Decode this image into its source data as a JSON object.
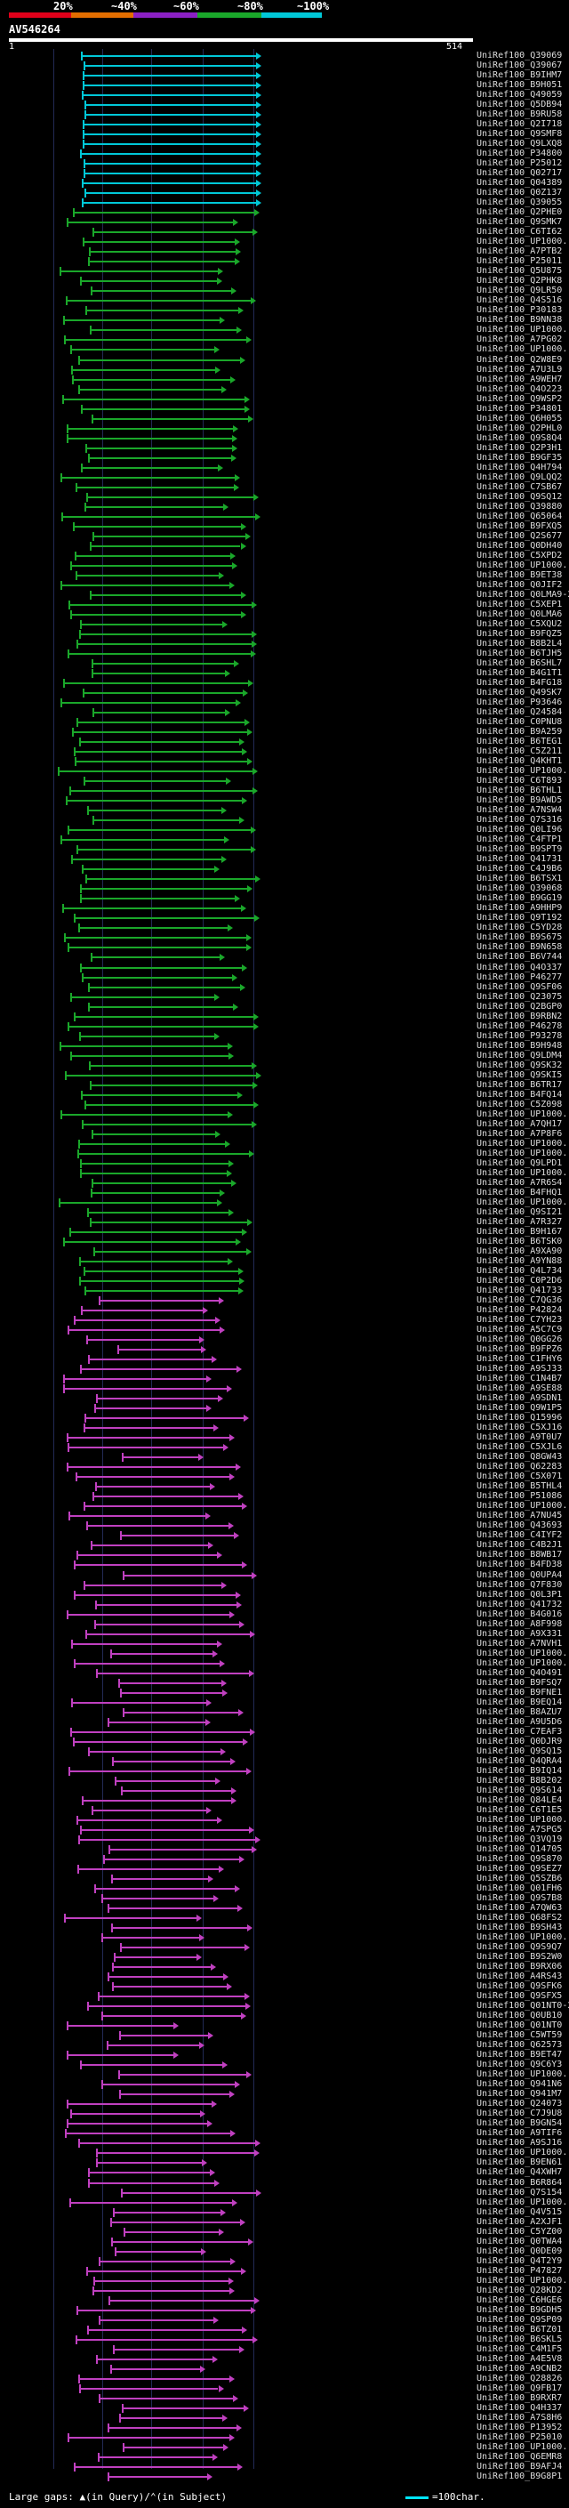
{
  "legend": {
    "labels": [
      "20%",
      "~40%",
      "~60%",
      "~80%",
      "~100%"
    ],
    "colors": [
      "#e0001a",
      "#e36e00",
      "#8b20c4",
      "#1aa72a",
      "#00c8d8"
    ]
  },
  "query": {
    "id": "AV546264",
    "start": "1",
    "end": "514"
  },
  "footer": {
    "large_gaps": "Large gaps:",
    "in_query": "(in Query)",
    "in_subject": "(in Subject)",
    "scale": "=100char."
  },
  "hits": [
    "UniRef100_Q39069",
    "UniRef100_Q39067",
    "UniRef100_B9IHM7",
    "UniRef100_B9H051",
    "UniRef100_Q49059",
    "UniRef100_Q5DB94",
    "UniRef100_B9RU58",
    "UniRef100_Q2I718",
    "UniRef100_Q9SMF8",
    "UniRef100_Q9LXQ8",
    "UniRef100_P34800",
    "UniRef100_P25012",
    "UniRef100_Q02717",
    "UniRef100_Q04389",
    "UniRef100_Q0Z137",
    "UniRef100_Q39055",
    "UniRef100_Q2PHE0",
    "UniRef100_Q9SMK7",
    "UniRef100_C6TI62",
    "UniRef100_UP1000...",
    "UniRef100_A7PTB2",
    "UniRef100_P25011",
    "UniRef100_Q5U875",
    "UniRef100_Q2PHK8",
    "UniRef100_Q9LR50",
    "UniRef100_Q4S516",
    "UniRef100_P30183",
    "UniRef100_B9NN38",
    "UniRef100_UP1000...",
    "UniRef100_A7PG02",
    "UniRef100_UP1000...",
    "UniRef100_Q2W8E9",
    "UniRef100_A7U3L9",
    "UniRef100_A9WEH7",
    "UniRef100_Q4O223",
    "UniRef100_Q9WSP2",
    "UniRef100_P34801",
    "UniRef100_Q6H055",
    "UniRef100_Q2PHL0",
    "UniRef100_Q9S8Q4",
    "UniRef100_Q2P3H1",
    "UniRef100_B9GF35",
    "UniRef100_Q4H794",
    "UniRef100_Q9LQQ2",
    "UniRef100_C7SB67",
    "UniRef100_Q9SQ12",
    "UniRef100_Q39880",
    "UniRef100_Q65064",
    "UniRef100_B9FXQ5",
    "UniRef100_Q2S677",
    "UniRef100_Q0DH40",
    "UniRef100_C5XPD2",
    "UniRef100_UP1000...",
    "UniRef100_B9ET38",
    "UniRef100_Q0JIF2",
    "UniRef100_Q0LMA9-2",
    "UniRef100_C5XEP1",
    "UniRef100_Q0LMA6",
    "UniRef100_C5XQU2",
    "UniRef100_B9FQZ5",
    "UniRef100_B8B2L4",
    "UniRef100_B6TJH5",
    "UniRef100_B6SHL7",
    "UniRef100_B4G1T1",
    "UniRef100_B4FG18",
    "UniRef100_Q49SK7",
    "UniRef100_P93646",
    "UniRef100_Q24584",
    "UniRef100_C0PNU8",
    "UniRef100_B9A259",
    "UniRef100_B6TEG1",
    "UniRef100_C5Z211",
    "UniRef100_Q4KHT1",
    "UniRef100_UP1000...",
    "UniRef100_C6T893",
    "UniRef100_B6THL1",
    "UniRef100_B9AWD5",
    "UniRef100_A7NSW4",
    "UniRef100_Q7S316",
    "UniRef100_Q0LI96",
    "UniRef100_C4FTP1",
    "UniRef100_B9SPT9",
    "UniRef100_Q41731",
    "UniRef100_C4J9B6",
    "UniRef100_B6TSX1",
    "UniRef100_Q39068",
    "UniRef100_B9GG19",
    "UniRef100_A9HHP9",
    "UniRef100_Q9T192",
    "UniRef100_C5YD28",
    "UniRef100_B9S675",
    "UniRef100_B9N658",
    "UniRef100_B6V744",
    "UniRef100_Q4O337",
    "UniRef100_P46277",
    "UniRef100_Q9SF06",
    "UniRef100_Q23075",
    "UniRef100_Q2BGP0",
    "UniRef100_B9RBN2",
    "UniRef100_P46278",
    "UniRef100_P93278",
    "UniRef100_B9H948",
    "UniRef100_Q9LDM4",
    "UniRef100_Q9SK32",
    "UniRef100_Q9SKI5",
    "UniRef100_B6TR17",
    "UniRef100_B4FQ14",
    "UniRef100_C5Z098",
    "UniRef100_UP1000...",
    "UniRef100_A7QH17",
    "UniRef100_A7P8F6",
    "UniRef100_UP1000...",
    "UniRef100_UP1000...",
    "UniRef100_Q9LPD1",
    "UniRef100_UP1000...",
    "UniRef100_A7R6S4",
    "UniRef100_B4FHQ1",
    "UniRef100_UP1000...",
    "UniRef100_Q9SI21",
    "UniRef100_A7R327",
    "UniRef100_B9H167",
    "UniRef100_B6TSK0",
    "UniRef100_A9XA90",
    "UniRef100_A9YN88",
    "UniRef100_Q4L734",
    "UniRef100_C0P2D6",
    "UniRef100_Q41733",
    "UniRef100_C7QG36",
    "UniRef100_P42824",
    "UniRef100_C7YH23",
    "UniRef100_A5C7C9",
    "UniRef100_Q0GG26",
    "UniRef100_B9FPZ6",
    "UniRef100_C1FHY6",
    "UniRef100_A9SJ33",
    "UniRef100_C1N4B7",
    "UniRef100_A9SE88",
    "UniRef100_A9SDN1",
    "UniRef100_Q9W1P5",
    "UniRef100_Q15996",
    "UniRef100_C5XJ16",
    "UniRef100_A9T0U7",
    "UniRef100_C5XJL6",
    "UniRef100_Q8GW43",
    "UniRef100_Q62283",
    "UniRef100_C5X071",
    "UniRef100_B5THL4",
    "UniRef100_P51086",
    "UniRef100_UP1000...",
    "UniRef100_A7NU45",
    "UniRef100_Q43693",
    "UniRef100_C4IYF2",
    "UniRef100_C4B2J1",
    "UniRef100_B8WB17",
    "UniRef100_B4FD38",
    "UniRef100_Q0UPA4",
    "UniRef100_Q7F830",
    "UniRef100_Q0L3P1",
    "UniRef100_Q41732",
    "UniRef100_B4G016",
    "UniRef100_A8F998",
    "UniRef100_A9X331",
    "UniRef100_A7NVH1",
    "UniRef100_UP1000...",
    "UniRef100_UP1000...",
    "UniRef100_Q4O491",
    "UniRef100_B9FSQ7",
    "UniRef100_B9FNE1",
    "UniRef100_B9EQ14",
    "UniRef100_B8AZU7",
    "UniRef100_A9U5D6",
    "UniRef100_C7EAF3",
    "UniRef100_Q0DJR9",
    "UniRef100_Q9SQ15",
    "UniRef100_Q4QRA4",
    "UniRef100_B9IQ14",
    "UniRef100_B8B202",
    "UniRef100_Q9S614",
    "UniRef100_Q84LE4",
    "UniRef100_C6T1E5",
    "UniRef100_UP1000...",
    "UniRef100_A7SPG5",
    "UniRef100_Q3VQ19",
    "UniRef100_Q14705",
    "UniRef100_Q9S870",
    "UniRef100_Q9SEZ7",
    "UniRef100_Q5SZB6",
    "UniRef100_Q01FH6",
    "UniRef100_Q9S7B8",
    "UniRef100_A7QW63",
    "UniRef100_Q68FS2",
    "UniRef100_B9SH43",
    "UniRef100_UP1000...",
    "UniRef100_Q9S9Q7",
    "UniRef100_B9S2W0",
    "UniRef100_B9RX06",
    "UniRef100_A4RS43",
    "UniRef100_Q9SFK6",
    "UniRef100_Q9SFX5",
    "UniRef100_Q01NT0-2",
    "UniRef100_Q0UB10",
    "UniRef100_Q01NT0",
    "UniRef100_C5WT59",
    "UniRef100_Q62573",
    "UniRef100_B9ET47",
    "UniRef100_Q9C6Y3",
    "UniRef100_UP1000...",
    "UniRef100_Q941N6",
    "UniRef100_Q941M7",
    "UniRef100_Q24073",
    "UniRef100_C7J9U8",
    "UniRef100_B9GN54",
    "UniRef100_A9TIF6",
    "UniRef100_A9SJ16",
    "UniRef100_UP1000...",
    "UniRef100_B9EN61",
    "UniRef100_Q4XWH7",
    "UniRef100_B6R864",
    "UniRef100_Q7S154",
    "UniRef100_UP1000...",
    "UniRef100_Q4V515",
    "UniRef100_A2XJF1",
    "UniRef100_C5YZ00",
    "UniRef100_Q0TWA4",
    "UniRef100_Q0DE09",
    "UniRef100_Q4T2Y9",
    "UniRef100_P47827",
    "UniRef100_UP1000...",
    "UniRef100_Q28KD2",
    "UniRef100_C6HGE6",
    "UniRef100_B9GDH5",
    "UniRef100_Q9SP09",
    "UniRef100_B6TZ01",
    "UniRef100_B6SKL5",
    "UniRef100_C4M1F5",
    "UniRef100_A4E5V8",
    "UniRef100_A9CNB2",
    "UniRef100_Q28826",
    "UniRef100_Q9FB17",
    "UniRef100_B9RXR7",
    "UniRef100_Q4H337",
    "UniRef100_A7S8H6",
    "UniRef100_P13952",
    "UniRef100_P25010",
    "UniRef100_UP1000...",
    "UniRef100_Q6EMR8",
    "UniRef100_B9AFJ4",
    "UniRef100_B9G8P1"
  ]
}
